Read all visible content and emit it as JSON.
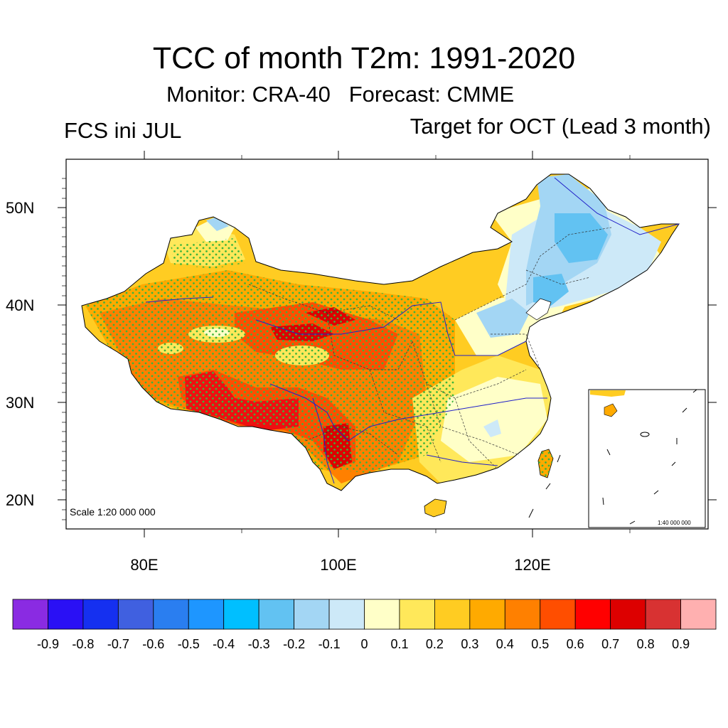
{
  "title": "TCC of month T2m: 1991-2020",
  "subtitle_monitor": "Monitor: CRA-40",
  "subtitle_forecast": "Forecast: CMME",
  "left_label": "FCS ini JUL",
  "right_label": "Target for OCT (Lead 3 month)",
  "map": {
    "lat_ticks": [
      "50N",
      "40N",
      "30N",
      "20N"
    ],
    "lon_ticks": [
      "80E",
      "100E",
      "120E"
    ],
    "scale_main": "Scale 1:20 000 000",
    "scale_inset": "1:40 000 000"
  },
  "colorbar": {
    "labels": [
      "-0.9",
      "-0.8",
      "-0.7",
      "-0.6",
      "-0.5",
      "-0.4",
      "-0.3",
      "-0.2",
      "-0.1",
      "0",
      "0.1",
      "0.2",
      "0.3",
      "0.4",
      "0.5",
      "0.6",
      "0.7",
      "0.8",
      "0.9"
    ],
    "colors": [
      "#8a2be2",
      "#2a10f5",
      "#1530f0",
      "#4060e0",
      "#2a7ef0",
      "#1e96ff",
      "#00bfff",
      "#62c2f2",
      "#a3d6f4",
      "#cde9f8",
      "#ffffc8",
      "#ffe85a",
      "#ffcc22",
      "#ffaa00",
      "#ff8000",
      "#ff4e00",
      "#ff0000",
      "#dd0000",
      "#d83232",
      "#ffb0b0"
    ]
  },
  "colors": {
    "significance_dots": "#3cb43c",
    "rivers": "#2020c8",
    "coast": "#000000"
  }
}
